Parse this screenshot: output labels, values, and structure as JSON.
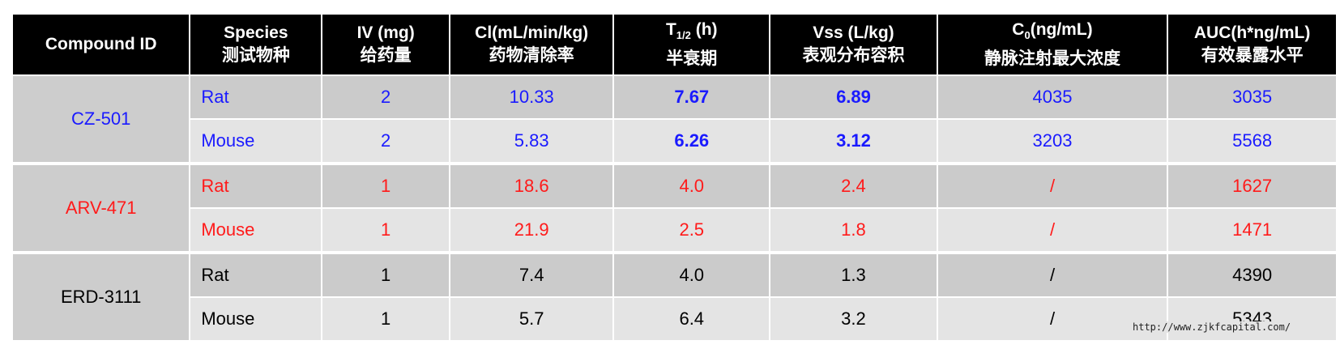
{
  "table": {
    "headers": [
      {
        "key": "compound",
        "line1": "Compound ID",
        "line2": ""
      },
      {
        "key": "species",
        "line1": "Species",
        "line2": "测试物种"
      },
      {
        "key": "iv",
        "line1": "IV (mg)",
        "line2": "给药量"
      },
      {
        "key": "cl",
        "line1": "Cl(mL/min/kg)",
        "line2": "药物清除率"
      },
      {
        "key": "t12",
        "line1_main": "T",
        "line1_sub": "1/2",
        "line1_after": " (h)",
        "line2": "半衰期"
      },
      {
        "key": "vss",
        "line1": "Vss (L/kg)",
        "line2": "表观分布容积"
      },
      {
        "key": "c0",
        "line1_main": "C",
        "line1_sub": "0",
        "line1_after": "(ng/mL)",
        "line2": "静脉注射最大浓度"
      },
      {
        "key": "auc",
        "line1": "AUC(h*ng/mL)",
        "line2": "有效暴露水平"
      }
    ],
    "groups": [
      {
        "compound": "CZ-501",
        "color": "#1a1aff",
        "rows": [
          {
            "species": "Rat",
            "iv": "2",
            "cl": "10.33",
            "t12": "7.67",
            "vss": "6.89",
            "c0": "4035",
            "auc": "3035"
          },
          {
            "species": "Mouse",
            "iv": "2",
            "cl": "5.83",
            "t12": "6.26",
            "vss": "3.12",
            "c0": "3203",
            "auc": "5568"
          }
        ],
        "bold_columns": [
          "t12",
          "vss"
        ]
      },
      {
        "compound": "ARV-471",
        "color": "#ff1a1a",
        "rows": [
          {
            "species": "Rat",
            "iv": "1",
            "cl": "18.6",
            "t12": "4.0",
            "vss": "2.4",
            "c0": "/",
            "auc": "1627"
          },
          {
            "species": "Mouse",
            "iv": "1",
            "cl": "21.9",
            "t12": "2.5",
            "vss": "1.8",
            "c0": "/",
            "auc": "1471"
          }
        ],
        "bold_columns": []
      },
      {
        "compound": "ERD-3111",
        "color": "#000000",
        "rows": [
          {
            "species": "Rat",
            "iv": "1",
            "cl": "7.4",
            "t12": "4.0",
            "vss": "1.3",
            "c0": "/",
            "auc": "4390"
          },
          {
            "species": "Mouse",
            "iv": "1",
            "cl": "5.7",
            "t12": "6.4",
            "vss": "3.2",
            "c0": "/",
            "auc": "5343"
          }
        ],
        "bold_columns": []
      }
    ]
  },
  "watermark": "http://www.zjkfcapital.com/"
}
